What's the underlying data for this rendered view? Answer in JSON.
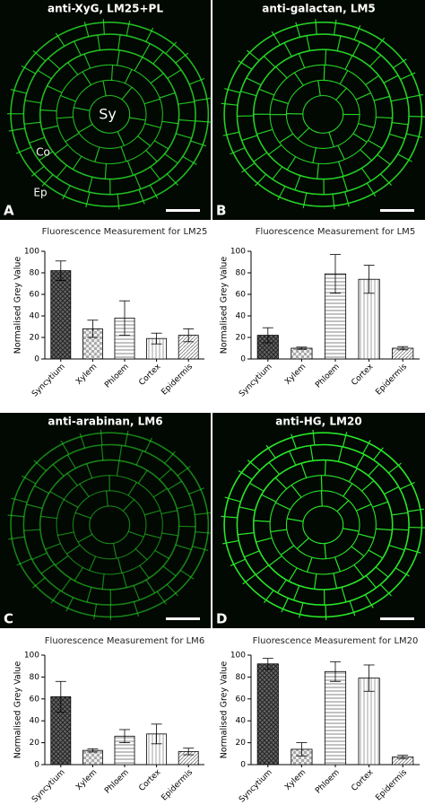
{
  "images": [
    {
      "title": "anti-XyG, LM25+PL",
      "letter": "A",
      "labels": [
        "Sy",
        "Co",
        "Ep"
      ]
    },
    {
      "title": "anti-galactan, LM5",
      "letter": "B"
    },
    {
      "title": "anti-arabinan, LM6",
      "letter": "C"
    },
    {
      "title": "anti-HG, LM20",
      "letter": "D"
    }
  ],
  "chart_data": [
    {
      "type": "bar",
      "title": "Fluorescence Measurement for LM25",
      "y_label": "Normalised Grey Value",
      "categories": [
        "Syncytium",
        "Xylem",
        "Phloem",
        "Cortex",
        "Epidermis"
      ],
      "values": [
        82,
        28,
        38,
        19,
        22
      ],
      "errors": [
        9,
        8,
        16,
        5,
        6
      ],
      "ylim": [
        0,
        100
      ],
      "yticks": [
        0,
        20,
        40,
        60,
        80,
        100
      ]
    },
    {
      "type": "bar",
      "title": "Fluorescence Measurement for LM5",
      "y_label": "Normalised Grey Value",
      "categories": [
        "Syncytium",
        "Xylem",
        "Phloem",
        "Cortex",
        "Epidermis"
      ],
      "values": [
        22,
        10,
        79,
        74,
        10
      ],
      "errors": [
        7,
        1,
        18,
        13,
        1.5
      ],
      "ylim": [
        0,
        100
      ],
      "yticks": [
        0,
        20,
        40,
        60,
        80,
        100
      ]
    },
    {
      "type": "bar",
      "title": "Fluorescence Measurement for LM6",
      "y_label": "Normalised Grey Value",
      "categories": [
        "Syncytium",
        "Xylem",
        "Phloem",
        "Cortex",
        "Epidermis"
      ],
      "values": [
        62,
        13,
        26,
        28,
        12
      ],
      "errors": [
        14,
        1.5,
        6,
        9,
        3
      ],
      "ylim": [
        0,
        100
      ],
      "yticks": [
        0,
        20,
        40,
        60,
        80,
        100
      ]
    },
    {
      "type": "bar",
      "title": "Fluorescence Measurement for LM20",
      "y_label": "Normalised Grey Value",
      "categories": [
        "Syncytium",
        "Xylem",
        "Phloem",
        "Cortex",
        "Epidermis"
      ],
      "values": [
        92,
        14,
        85,
        79,
        7
      ],
      "errors": [
        5,
        6,
        9,
        12,
        1.5
      ],
      "ylim": [
        0,
        100
      ],
      "yticks": [
        0,
        20,
        40,
        60,
        80,
        100
      ]
    }
  ]
}
